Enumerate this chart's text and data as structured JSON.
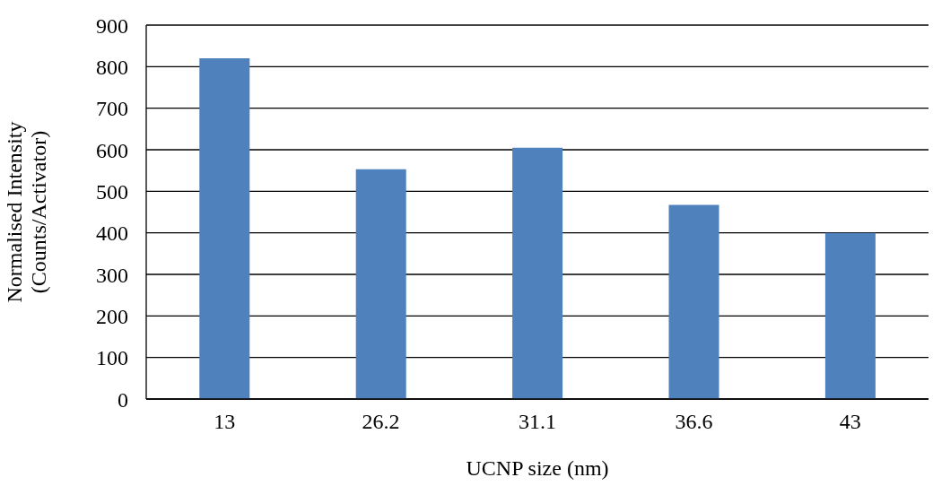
{
  "chart_data": {
    "type": "bar",
    "xlabel": "UCNP size (nm)",
    "ylabel": "Normalised Intensity\n(Counts/Activator)",
    "categories": [
      "13",
      "26.2",
      "31.1",
      "36.6",
      "43"
    ],
    "values": [
      820,
      553,
      605,
      467,
      400
    ],
    "color": "#4f81bd",
    "ylim": [
      0,
      900
    ],
    "yticks": [
      0,
      100,
      200,
      300,
      400,
      500,
      600,
      700,
      800,
      900
    ],
    "grid": "y"
  }
}
